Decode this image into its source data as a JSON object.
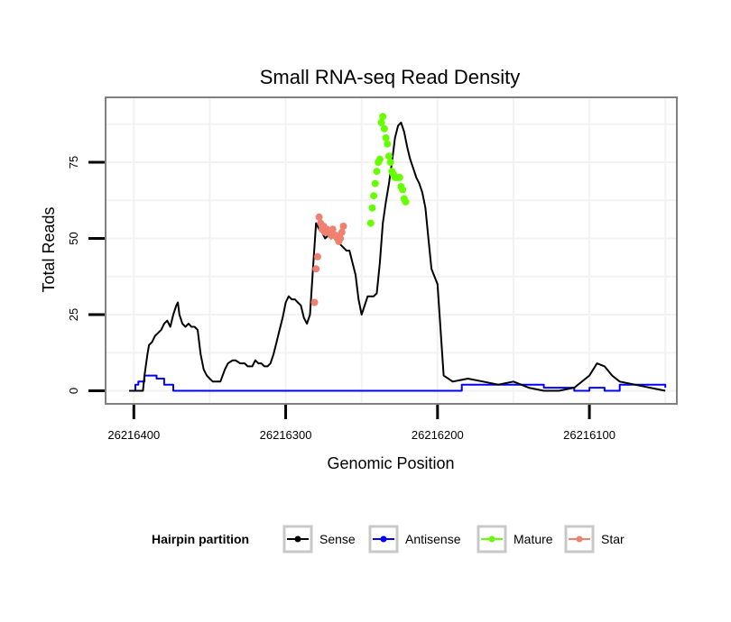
{
  "chart_data": {
    "type": "line",
    "title": "Small RNA-seq Read Density",
    "xlabel": "Genomic Position",
    "ylabel": "Total Reads",
    "x_reversed": true,
    "xlim": [
      26216418,
      26216043
    ],
    "ylim": [
      -4,
      96
    ],
    "x_ticks": [
      {
        "value": 26216400,
        "label": "26216400"
      },
      {
        "value": 26216300,
        "label": "26216300"
      },
      {
        "value": 26216200,
        "label": "26216200"
      },
      {
        "value": 26216100,
        "label": "26216100"
      }
    ],
    "y_ticks": [
      {
        "value": 0,
        "label": "0"
      },
      {
        "value": 25,
        "label": "25"
      },
      {
        "value": 50,
        "label": "50"
      },
      {
        "value": 75,
        "label": "75"
      }
    ],
    "grid": true,
    "legend": {
      "title": "Hairpin partition",
      "position": "bottom",
      "entries": [
        {
          "label": "Sense",
          "color": "#000000"
        },
        {
          "label": "Antisense",
          "color": "#0000ff"
        },
        {
          "label": "Mature",
          "color": "#66ff00"
        },
        {
          "label": "Star",
          "color": "#f08070"
        }
      ]
    },
    "series": [
      {
        "name": "Sense",
        "color": "#000000",
        "x": [
          26216403,
          26216394,
          26216393,
          26216391,
          26216390,
          26216388,
          26216386,
          26216384,
          26216382,
          26216380,
          26216378,
          26216376,
          26216374,
          26216372,
          26216371,
          26216370,
          26216368,
          26216366,
          26216364,
          26216362,
          26216360,
          26216358,
          26216356,
          26216354,
          26216352,
          26216350,
          26216348,
          26216346,
          26216343,
          26216340,
          26216338,
          26216335,
          26216333,
          26216330,
          26216327,
          26216325,
          26216322,
          26216320,
          26216318,
          26216316,
          26216314,
          26216312,
          26216310,
          26216308,
          26216306,
          26216304,
          26216302,
          26216300,
          26216298,
          26216296,
          26216294,
          26216292,
          26216290,
          26216288,
          26216286,
          26216284,
          26216282,
          26216280,
          26216278,
          26216276,
          26216274,
          26216272,
          26216270,
          26216268,
          26216266,
          26216264,
          26216262,
          26216260,
          26216258,
          26216256,
          26216254,
          26216252,
          26216250,
          26216248,
          26216246,
          26216244,
          26216242,
          26216240,
          26216238,
          26216236,
          26216234,
          26216232,
          26216230,
          26216228,
          26216226,
          26216224,
          26216222,
          26216220,
          26216218,
          26216216,
          26216214,
          26216212,
          26216210,
          26216208,
          26216206,
          26216204,
          26216200,
          26216196,
          26216190,
          26216180,
          26216170,
          26216160,
          26216150,
          26216140,
          26216130,
          26216120,
          26216110,
          26216100,
          26216095,
          26216090,
          26216085,
          26216080,
          26216070,
          26216060,
          26216050
        ],
        "y": [
          0,
          0,
          5,
          12,
          15,
          16,
          18,
          19,
          20,
          22,
          23,
          21,
          25,
          28,
          29,
          25,
          22,
          21,
          22,
          21,
          21,
          20,
          12,
          7,
          5,
          4,
          3,
          3,
          3,
          7,
          9,
          10,
          10,
          9,
          9,
          8,
          8,
          10,
          9,
          9,
          8,
          8,
          9,
          12,
          16,
          20,
          24,
          29,
          31,
          30,
          30,
          29,
          28,
          24,
          22,
          25,
          40,
          55,
          53,
          52,
          50,
          51,
          50,
          52,
          50,
          48,
          47,
          46,
          46,
          42,
          38,
          30,
          25,
          28,
          31,
          31,
          31,
          32,
          42,
          55,
          62,
          68,
          75,
          83,
          87,
          88,
          85,
          80,
          76,
          73,
          70,
          68,
          65,
          60,
          50,
          40,
          35,
          5,
          3,
          4,
          3,
          2,
          3,
          1,
          0,
          0,
          1,
          5,
          9,
          8,
          5,
          3,
          2,
          1,
          0
        ]
      },
      {
        "name": "Antisense",
        "color": "#0000ff",
        "x": [
          26216403,
          26216399,
          26216397,
          26216393,
          26216385,
          26216380,
          26216374,
          26216200,
          26216184,
          26216130,
          26216110,
          26216100,
          26216090,
          26216080,
          26216050
        ],
        "y": [
          0,
          2,
          3,
          5,
          4,
          2,
          0,
          0,
          2,
          1,
          0,
          1,
          0,
          2,
          1
        ]
      },
      {
        "name": "Mature",
        "color": "#66ff00",
        "x": [
          26216244,
          26216243,
          26216242,
          26216241,
          26216240,
          26216239,
          26216238,
          26216237,
          26216236,
          26216235,
          26216234,
          26216233,
          26216232,
          26216231,
          26216230,
          26216229,
          26216228,
          26216227,
          26216226,
          26216225,
          26216224,
          26216223,
          26216222,
          26216221
        ],
        "y": [
          55,
          60,
          64,
          68,
          72,
          75,
          76,
          88,
          90,
          86,
          83,
          81,
          77,
          75,
          72,
          71,
          70,
          70,
          70,
          70,
          67,
          66,
          63,
          62
        ]
      },
      {
        "name": "Star",
        "color": "#f08070",
        "x": [
          26216281,
          26216280,
          26216279,
          26216278,
          26216277,
          26216276,
          26216275,
          26216274,
          26216273,
          26216272,
          26216271,
          26216270,
          26216269,
          26216268,
          26216267,
          26216266,
          26216265,
          26216264,
          26216263,
          26216262
        ],
        "y": [
          29,
          40,
          44,
          57,
          55,
          53,
          54,
          52,
          53,
          52,
          52,
          51,
          53,
          51,
          51,
          50,
          49,
          50,
          52,
          54
        ]
      }
    ]
  }
}
